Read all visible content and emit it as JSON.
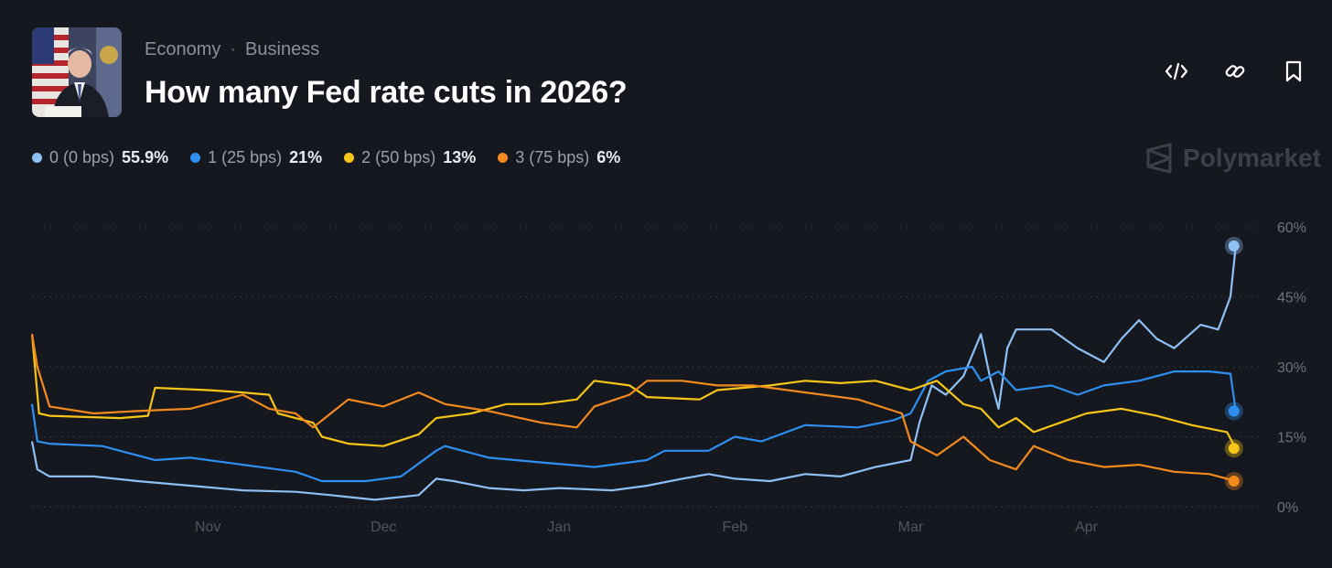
{
  "header": {
    "breadcrumb": [
      "Economy",
      "Business"
    ],
    "separator": "·",
    "title": "How many Fed rate cuts in 2026?"
  },
  "actions": [
    {
      "name": "embed-icon"
    },
    {
      "name": "link-icon"
    },
    {
      "name": "bookmark-icon"
    }
  ],
  "brand": "Polymarket",
  "legend": [
    {
      "label": "0 (0 bps)",
      "value": "55.9%",
      "color": "#8ec0f5"
    },
    {
      "label": "1 (25 bps)",
      "value": "21%",
      "color": "#2f8ff0"
    },
    {
      "label": "2 (50 bps)",
      "value": "13%",
      "color": "#f5c518"
    },
    {
      "label": "3 (75 bps)",
      "value": "6%",
      "color": "#f28a1e"
    }
  ],
  "chart_data": {
    "type": "line",
    "x_ticks": [
      "Nov",
      "Dec",
      "Jan",
      "Feb",
      "Mar",
      "Apr"
    ],
    "x_tick_pos": [
      1.0,
      2.0,
      3.0,
      4.0,
      5.0,
      6.0
    ],
    "xlim": [
      0.0,
      6.95
    ],
    "y_ticks": [
      "0%",
      "15%",
      "30%",
      "45%",
      "60%"
    ],
    "ylim": [
      0,
      60
    ],
    "grid": "horizontal-dotted",
    "series": [
      {
        "name": "0 (0 bps)",
        "color": "#8ec0f5",
        "points": [
          [
            0.0,
            14
          ],
          [
            0.03,
            8
          ],
          [
            0.1,
            6.5
          ],
          [
            0.35,
            6.5
          ],
          [
            0.6,
            5.5
          ],
          [
            0.9,
            4.5
          ],
          [
            1.2,
            3.5
          ],
          [
            1.5,
            3.2
          ],
          [
            1.7,
            2.5
          ],
          [
            1.95,
            1.5
          ],
          [
            2.2,
            2.5
          ],
          [
            2.3,
            6
          ],
          [
            2.4,
            5.5
          ],
          [
            2.6,
            4
          ],
          [
            2.8,
            3.5
          ],
          [
            3.0,
            4
          ],
          [
            3.3,
            3.5
          ],
          [
            3.5,
            4.5
          ],
          [
            3.7,
            6
          ],
          [
            3.85,
            7
          ],
          [
            4.0,
            6
          ],
          [
            4.2,
            5.5
          ],
          [
            4.4,
            7
          ],
          [
            4.6,
            6.5
          ],
          [
            4.8,
            8.5
          ],
          [
            5.0,
            10
          ],
          [
            5.05,
            18
          ],
          [
            5.12,
            26
          ],
          [
            5.2,
            24
          ],
          [
            5.3,
            28
          ],
          [
            5.4,
            37
          ],
          [
            5.45,
            28
          ],
          [
            5.5,
            21
          ],
          [
            5.55,
            34
          ],
          [
            5.6,
            38
          ],
          [
            5.8,
            38
          ],
          [
            5.95,
            34
          ],
          [
            6.1,
            31
          ],
          [
            6.2,
            36
          ],
          [
            6.3,
            40
          ],
          [
            6.4,
            36
          ],
          [
            6.5,
            34
          ],
          [
            6.65,
            39
          ],
          [
            6.75,
            38
          ],
          [
            6.82,
            45
          ],
          [
            6.85,
            55.9
          ]
        ]
      },
      {
        "name": "1 (25 bps)",
        "color": "#2f8ff0",
        "points": [
          [
            0.0,
            22
          ],
          [
            0.03,
            14
          ],
          [
            0.1,
            13.5
          ],
          [
            0.4,
            13
          ],
          [
            0.7,
            10
          ],
          [
            0.9,
            10.5
          ],
          [
            1.2,
            9
          ],
          [
            1.5,
            7.5
          ],
          [
            1.65,
            5.5
          ],
          [
            1.9,
            5.5
          ],
          [
            2.1,
            6.5
          ],
          [
            2.3,
            12
          ],
          [
            2.35,
            13
          ],
          [
            2.6,
            10.5
          ],
          [
            2.9,
            9.5
          ],
          [
            3.2,
            8.5
          ],
          [
            3.5,
            10
          ],
          [
            3.6,
            12
          ],
          [
            3.85,
            12
          ],
          [
            4.0,
            15
          ],
          [
            4.15,
            14
          ],
          [
            4.4,
            17.5
          ],
          [
            4.7,
            17
          ],
          [
            4.9,
            18.5
          ],
          [
            5.0,
            20
          ],
          [
            5.1,
            27
          ],
          [
            5.2,
            29
          ],
          [
            5.35,
            30
          ],
          [
            5.4,
            27
          ],
          [
            5.5,
            29
          ],
          [
            5.6,
            25
          ],
          [
            5.8,
            26
          ],
          [
            5.95,
            24
          ],
          [
            6.1,
            26
          ],
          [
            6.3,
            27
          ],
          [
            6.5,
            29
          ],
          [
            6.7,
            29
          ],
          [
            6.82,
            28.5
          ],
          [
            6.85,
            20.5
          ]
        ]
      },
      {
        "name": "2 (50 bps)",
        "color": "#f5c518",
        "points": [
          [
            0.0,
            37
          ],
          [
            0.04,
            20
          ],
          [
            0.1,
            19.5
          ],
          [
            0.5,
            19
          ],
          [
            0.66,
            19.5
          ],
          [
            0.7,
            25.5
          ],
          [
            1.0,
            25
          ],
          [
            1.2,
            24.5
          ],
          [
            1.35,
            24
          ],
          [
            1.4,
            20
          ],
          [
            1.6,
            18
          ],
          [
            1.65,
            15
          ],
          [
            1.8,
            13.5
          ],
          [
            2.0,
            13
          ],
          [
            2.2,
            15.5
          ],
          [
            2.3,
            19
          ],
          [
            2.5,
            20
          ],
          [
            2.7,
            22
          ],
          [
            2.9,
            22
          ],
          [
            3.1,
            23
          ],
          [
            3.2,
            27
          ],
          [
            3.4,
            26
          ],
          [
            3.5,
            23.5
          ],
          [
            3.8,
            23
          ],
          [
            3.9,
            25
          ],
          [
            4.2,
            26
          ],
          [
            4.4,
            27
          ],
          [
            4.6,
            26.5
          ],
          [
            4.8,
            27
          ],
          [
            5.0,
            25
          ],
          [
            5.15,
            27
          ],
          [
            5.3,
            22
          ],
          [
            5.4,
            21
          ],
          [
            5.5,
            17
          ],
          [
            5.6,
            19
          ],
          [
            5.7,
            16
          ],
          [
            5.85,
            18
          ],
          [
            6.0,
            20
          ],
          [
            6.2,
            21
          ],
          [
            6.4,
            19.5
          ],
          [
            6.6,
            17.5
          ],
          [
            6.8,
            16
          ],
          [
            6.85,
            12.5
          ]
        ]
      },
      {
        "name": "3 (75 bps)",
        "color": "#f28a1e",
        "points": [
          [
            0.0,
            37
          ],
          [
            0.03,
            30
          ],
          [
            0.1,
            21.5
          ],
          [
            0.35,
            20
          ],
          [
            0.6,
            20.5
          ],
          [
            0.9,
            21
          ],
          [
            1.2,
            24
          ],
          [
            1.35,
            21
          ],
          [
            1.5,
            20
          ],
          [
            1.6,
            17
          ],
          [
            1.7,
            20
          ],
          [
            1.8,
            23
          ],
          [
            2.0,
            21.5
          ],
          [
            2.2,
            24.5
          ],
          [
            2.35,
            22
          ],
          [
            2.6,
            20.5
          ],
          [
            2.9,
            18
          ],
          [
            3.1,
            17
          ],
          [
            3.2,
            21.5
          ],
          [
            3.4,
            24
          ],
          [
            3.5,
            27
          ],
          [
            3.7,
            27
          ],
          [
            3.9,
            26
          ],
          [
            4.1,
            26
          ],
          [
            4.4,
            24.5
          ],
          [
            4.7,
            23
          ],
          [
            4.95,
            20
          ],
          [
            5.0,
            14
          ],
          [
            5.15,
            11
          ],
          [
            5.3,
            15
          ],
          [
            5.45,
            10
          ],
          [
            5.6,
            8
          ],
          [
            5.7,
            13
          ],
          [
            5.9,
            10
          ],
          [
            6.1,
            8.5
          ],
          [
            6.3,
            9
          ],
          [
            6.5,
            7.5
          ],
          [
            6.7,
            7
          ],
          [
            6.85,
            5.5
          ]
        ]
      }
    ]
  }
}
